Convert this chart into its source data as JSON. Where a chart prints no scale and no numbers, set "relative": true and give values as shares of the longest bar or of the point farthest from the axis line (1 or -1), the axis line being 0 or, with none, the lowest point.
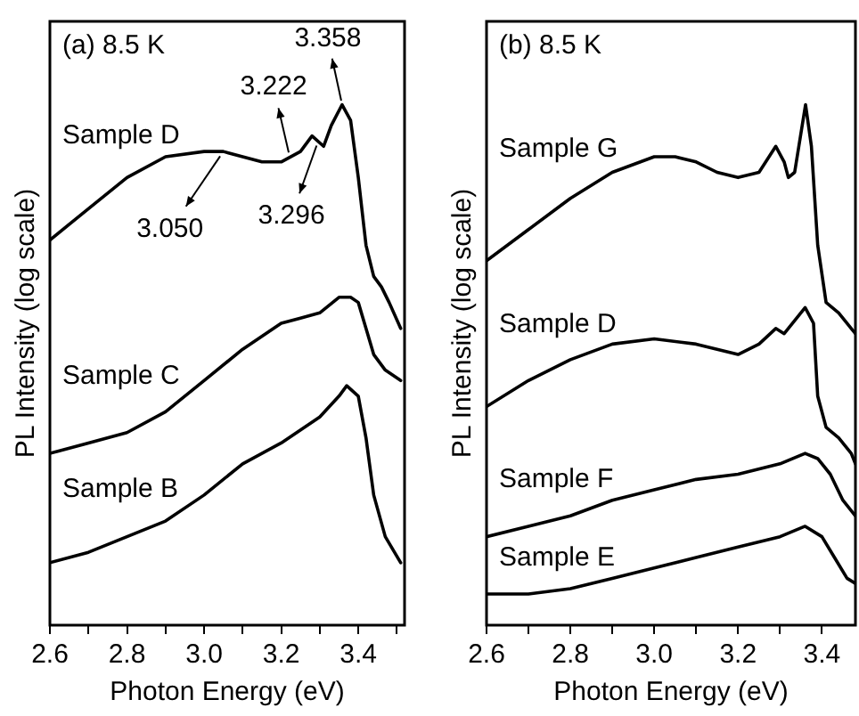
{
  "chart_data": [
    {
      "type": "line",
      "relative": true,
      "xlabel": "Photon Energy (eV)",
      "ylabel": "PL Intensity (log scale)",
      "xlim": [
        2.6,
        3.52
      ],
      "xticks": [
        2.6,
        {
          "value": 2.7,
          "label": null
        },
        2.8,
        {
          "value": 2.9,
          "label": null
        },
        {
          "value": 3,
          "label": "3.0"
        },
        {
          "value": 3.1,
          "label": null
        },
        3.2,
        {
          "value": 3.3,
          "label": null
        },
        3.4,
        {
          "value": 3.5,
          "label": null
        }
      ],
      "marker": "none",
      "legend": false,
      "grid": false,
      "x": [
        2.6,
        2.7,
        2.8,
        2.9,
        3.0,
        3.05,
        3.1,
        3.15,
        3.2,
        3.25,
        3.28,
        3.31,
        3.33,
        3.358,
        3.38,
        3.4,
        3.42,
        3.44,
        3.46,
        3.48,
        3.51
      ],
      "annotations": [
        "(a) 8.5 K",
        {
          "text": "3.050",
          "x": 3.05,
          "y": 0.91
        },
        {
          "text": "3.222",
          "x": 3.222,
          "y": 0.9
        },
        {
          "text": "3.296",
          "x": 3.296,
          "y": 0.93
        },
        {
          "text": "3.358",
          "x": 3.358,
          "y": 1.0
        }
      ],
      "series": [
        {
          "name": "Sample D",
          "color": "#000000",
          "values": [
            0.74,
            0.8,
            0.86,
            0.9,
            0.91,
            0.91,
            0.9,
            0.89,
            0.89,
            0.91,
            0.94,
            0.92,
            0.96,
            1.0,
            0.97,
            0.86,
            0.73,
            0.67,
            0.65,
            0.62,
            0.57
          ]
        },
        {
          "name": "Sample C",
          "color": "#000000",
          "x": [
            2.6,
            2.7,
            2.8,
            2.9,
            3.0,
            3.1,
            3.2,
            3.25,
            3.3,
            3.35,
            3.38,
            3.4,
            3.42,
            3.44,
            3.47,
            3.51
          ],
          "values": [
            0.33,
            0.35,
            0.37,
            0.41,
            0.47,
            0.53,
            0.58,
            0.59,
            0.6,
            0.63,
            0.63,
            0.62,
            0.57,
            0.52,
            0.49,
            0.47
          ]
        },
        {
          "name": "Sample B",
          "color": "#000000",
          "x": [
            2.6,
            2.7,
            2.8,
            2.9,
            3.0,
            3.1,
            3.2,
            3.3,
            3.35,
            3.37,
            3.4,
            3.42,
            3.44,
            3.47,
            3.51
          ],
          "values": [
            0.12,
            0.14,
            0.17,
            0.2,
            0.25,
            0.31,
            0.35,
            0.4,
            0.44,
            0.46,
            0.44,
            0.36,
            0.25,
            0.17,
            0.12
          ]
        }
      ]
    },
    {
      "type": "line",
      "relative": true,
      "xlabel": "Photon Energy (eV)",
      "ylabel": "PL Intensity (log scale)",
      "xlim": [
        2.6,
        3.48
      ],
      "xticks": [
        2.6,
        {
          "value": 2.7,
          "label": null
        },
        2.8,
        {
          "value": 2.9,
          "label": null
        },
        {
          "value": 3,
          "label": "3.0"
        },
        {
          "value": 3.1,
          "label": null
        },
        3.2,
        {
          "value": 3.3,
          "label": null
        },
        3.4
      ],
      "marker": "none",
      "legend": false,
      "grid": false,
      "annotations": [
        "(b) 8.5 K"
      ],
      "series": [
        {
          "name": "Sample G",
          "color": "#000000",
          "x": [
            2.6,
            2.7,
            2.8,
            2.9,
            3.0,
            3.05,
            3.1,
            3.15,
            3.2,
            3.25,
            3.29,
            3.31,
            3.32,
            3.335,
            3.361,
            3.375,
            3.39,
            3.41,
            3.44,
            3.47,
            3.48
          ],
          "values": [
            0.7,
            0.76,
            0.82,
            0.87,
            0.9,
            0.9,
            0.89,
            0.87,
            0.86,
            0.87,
            0.92,
            0.89,
            0.86,
            0.87,
            1.0,
            0.92,
            0.73,
            0.62,
            0.6,
            0.57,
            0.56
          ]
        },
        {
          "name": "Sample D",
          "color": "#000000",
          "x": [
            2.6,
            2.7,
            2.8,
            2.9,
            3.0,
            3.1,
            3.15,
            3.2,
            3.25,
            3.29,
            3.31,
            3.36,
            3.38,
            3.39,
            3.41,
            3.44,
            3.47,
            3.48
          ],
          "values": [
            0.42,
            0.47,
            0.51,
            0.54,
            0.55,
            0.54,
            0.53,
            0.52,
            0.54,
            0.57,
            0.56,
            0.61,
            0.58,
            0.44,
            0.38,
            0.36,
            0.33,
            0.31
          ]
        },
        {
          "name": "Sample F",
          "color": "#000000",
          "x": [
            2.6,
            2.7,
            2.8,
            2.9,
            3.0,
            3.1,
            3.2,
            3.3,
            3.36,
            3.39,
            3.42,
            3.45,
            3.48
          ],
          "values": [
            0.17,
            0.19,
            0.21,
            0.24,
            0.26,
            0.28,
            0.29,
            0.31,
            0.33,
            0.32,
            0.29,
            0.24,
            0.21
          ]
        },
        {
          "name": "Sample E",
          "color": "#000000",
          "x": [
            2.6,
            2.7,
            2.8,
            2.9,
            3.0,
            3.1,
            3.2,
            3.3,
            3.36,
            3.4,
            3.43,
            3.46,
            3.48
          ],
          "values": [
            0.06,
            0.06,
            0.07,
            0.09,
            0.11,
            0.13,
            0.15,
            0.17,
            0.19,
            0.17,
            0.13,
            0.09,
            0.08
          ]
        }
      ]
    }
  ]
}
